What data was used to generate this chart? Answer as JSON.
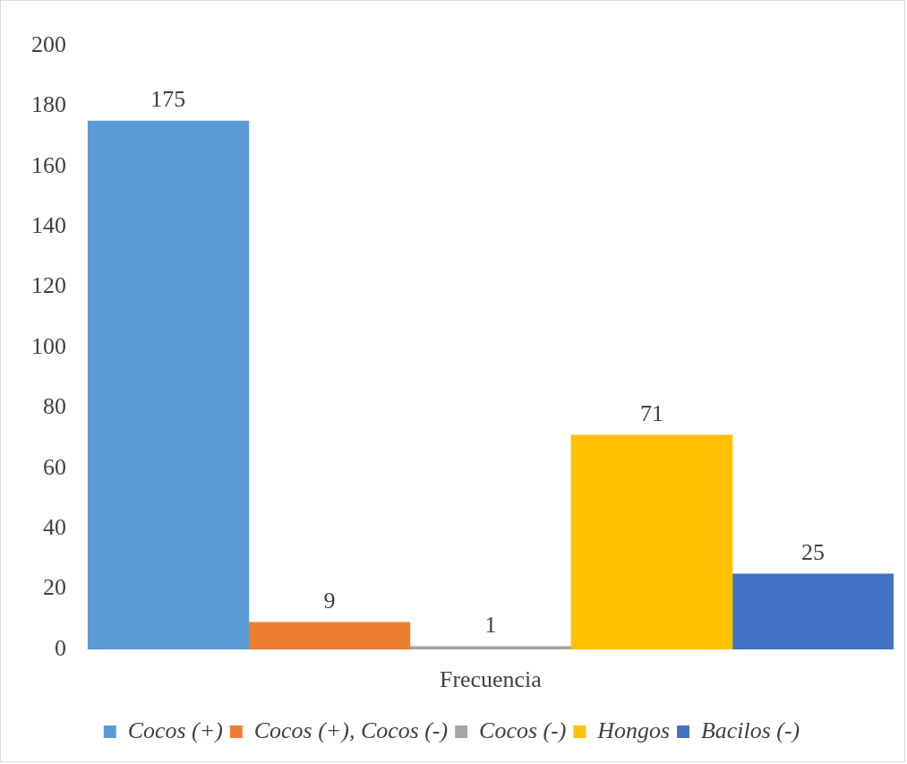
{
  "chart_data": {
    "type": "bar",
    "categories": [
      "Frecuencia"
    ],
    "series": [
      {
        "name": "Cocos (+)",
        "color": "#5b9bd5",
        "values": [
          175
        ]
      },
      {
        "name": "Cocos (+), Cocos (-)",
        "color": "#ed7d31",
        "values": [
          9
        ]
      },
      {
        "name": "Cocos (-)",
        "color": "#a5a5a5",
        "values": [
          1
        ]
      },
      {
        "name": "Hongos",
        "color": "#ffc000",
        "values": [
          71
        ]
      },
      {
        "name": "Bacilos (-)",
        "color": "#4472c4",
        "values": [
          25
        ]
      }
    ],
    "ylim": [
      0,
      200
    ],
    "yticks": [
      0,
      20,
      40,
      60,
      80,
      100,
      120,
      140,
      160,
      180,
      200
    ],
    "grid": false,
    "legend": "bottom",
    "data_labels": true
  }
}
